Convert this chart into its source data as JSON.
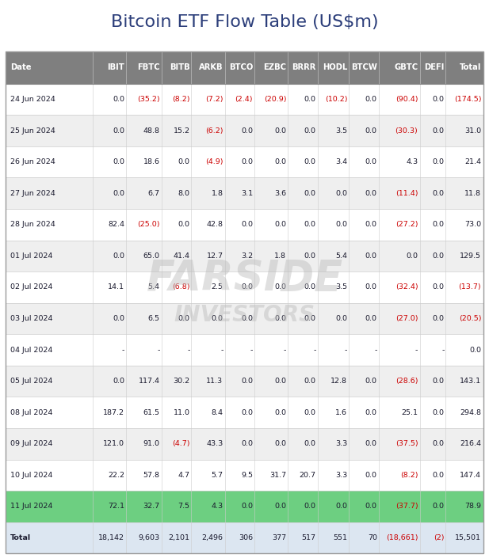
{
  "title": "Bitcoin ETF Flow Table (US$m)",
  "columns": [
    "Date",
    "IBIT",
    "FBTC",
    "BITB",
    "ARKB",
    "BTCO",
    "EZBC",
    "BRRR",
    "HODL",
    "BTCW",
    "GBTC",
    "DEFI",
    "Total"
  ],
  "rows": [
    [
      "24 Jun 2024",
      "0.0",
      "(35.2)",
      "(8.2)",
      "(7.2)",
      "(2.4)",
      "(20.9)",
      "0.0",
      "(10.2)",
      "0.0",
      "(90.4)",
      "0.0",
      "(174.5)"
    ],
    [
      "25 Jun 2024",
      "0.0",
      "48.8",
      "15.2",
      "(6.2)",
      "0.0",
      "0.0",
      "0.0",
      "3.5",
      "0.0",
      "(30.3)",
      "0.0",
      "31.0"
    ],
    [
      "26 Jun 2024",
      "0.0",
      "18.6",
      "0.0",
      "(4.9)",
      "0.0",
      "0.0",
      "0.0",
      "3.4",
      "0.0",
      "4.3",
      "0.0",
      "21.4"
    ],
    [
      "27 Jun 2024",
      "0.0",
      "6.7",
      "8.0",
      "1.8",
      "3.1",
      "3.6",
      "0.0",
      "0.0",
      "0.0",
      "(11.4)",
      "0.0",
      "11.8"
    ],
    [
      "28 Jun 2024",
      "82.4",
      "(25.0)",
      "0.0",
      "42.8",
      "0.0",
      "0.0",
      "0.0",
      "0.0",
      "0.0",
      "(27.2)",
      "0.0",
      "73.0"
    ],
    [
      "01 Jul 2024",
      "0.0",
      "65.0",
      "41.4",
      "12.7",
      "3.2",
      "1.8",
      "0.0",
      "5.4",
      "0.0",
      "0.0",
      "0.0",
      "129.5"
    ],
    [
      "02 Jul 2024",
      "14.1",
      "5.4",
      "(6.8)",
      "2.5",
      "0.0",
      "0.0",
      "0.0",
      "3.5",
      "0.0",
      "(32.4)",
      "0.0",
      "(13.7)"
    ],
    [
      "03 Jul 2024",
      "0.0",
      "6.5",
      "0.0",
      "0.0",
      "0.0",
      "0.0",
      "0.0",
      "0.0",
      "0.0",
      "(27.0)",
      "0.0",
      "(20.5)"
    ],
    [
      "04 Jul 2024",
      "-",
      "-",
      "-",
      "-",
      "-",
      "-",
      "-",
      "-",
      "-",
      "-",
      "-",
      "0.0"
    ],
    [
      "05 Jul 2024",
      "0.0",
      "117.4",
      "30.2",
      "11.3",
      "0.0",
      "0.0",
      "0.0",
      "12.8",
      "0.0",
      "(28.6)",
      "0.0",
      "143.1"
    ],
    [
      "08 Jul 2024",
      "187.2",
      "61.5",
      "11.0",
      "8.4",
      "0.0",
      "0.0",
      "0.0",
      "1.6",
      "0.0",
      "25.1",
      "0.0",
      "294.8"
    ],
    [
      "09 Jul 2024",
      "121.0",
      "91.0",
      "(4.7)",
      "43.3",
      "0.0",
      "0.0",
      "0.0",
      "3.3",
      "0.0",
      "(37.5)",
      "0.0",
      "216.4"
    ],
    [
      "10 Jul 2024",
      "22.2",
      "57.8",
      "4.7",
      "5.7",
      "9.5",
      "31.7",
      "20.7",
      "3.3",
      "0.0",
      "(8.2)",
      "0.0",
      "147.4"
    ],
    [
      "11 Jul 2024",
      "72.1",
      "32.7",
      "7.5",
      "4.3",
      "0.0",
      "0.0",
      "0.0",
      "0.0",
      "0.0",
      "(37.7)",
      "0.0",
      "78.9"
    ],
    [
      "Total",
      "18,142",
      "9,603",
      "2,101",
      "2,496",
      "306",
      "377",
      "517",
      "551",
      "70",
      "(18,661)",
      "(2)",
      "15,501"
    ]
  ],
  "highlight_row_index": 13,
  "highlight_color": "#6dcf81",
  "header_bg": "#7f7f7f",
  "header_fg": "#ffffff",
  "row_bg_odd": "#ffffff",
  "row_bg_even": "#efefef",
  "total_row_bg": "#dce6f1",
  "negative_color": "#cc0000",
  "positive_color": "#1a1a2e",
  "title_color": "#2c3e7a",
  "col_widths_rel": [
    2.2,
    0.85,
    0.9,
    0.75,
    0.85,
    0.75,
    0.85,
    0.75,
    0.8,
    0.75,
    1.05,
    0.65,
    0.95
  ],
  "watermark1": "FARSIDE",
  "watermark2": "INVESTORS"
}
